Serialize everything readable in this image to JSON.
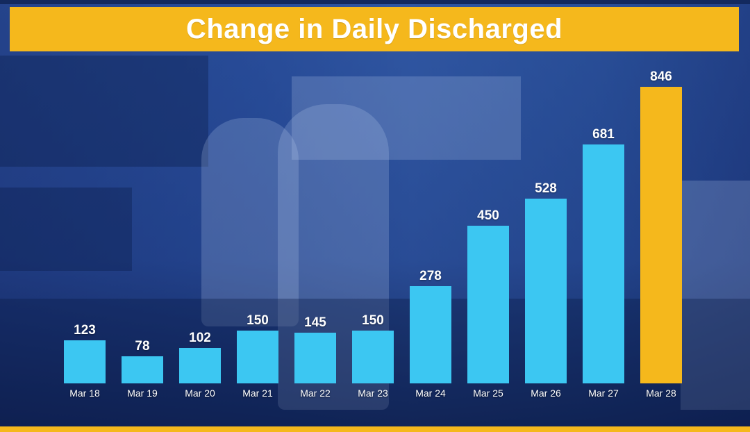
{
  "chart_data": {
    "type": "bar",
    "title": "Change in Daily Discharged",
    "xlabel": "",
    "ylabel": "",
    "categories": [
      "Mar 18",
      "Mar 19",
      "Mar 20",
      "Mar 21",
      "Mar 22",
      "Mar 23",
      "Mar 24",
      "Mar 25",
      "Mar 26",
      "Mar 27",
      "Mar 28"
    ],
    "values": [
      123,
      78,
      102,
      150,
      145,
      150,
      278,
      450,
      528,
      681,
      846
    ],
    "ylim": [
      0,
      846
    ],
    "grid": false,
    "legend": "none",
    "highlight_index": 10
  },
  "colors": {
    "banner": "#f5b81c",
    "bar": "#3cc7f2",
    "highlight_bar": "#f5b81c",
    "text": "#ffffff"
  }
}
